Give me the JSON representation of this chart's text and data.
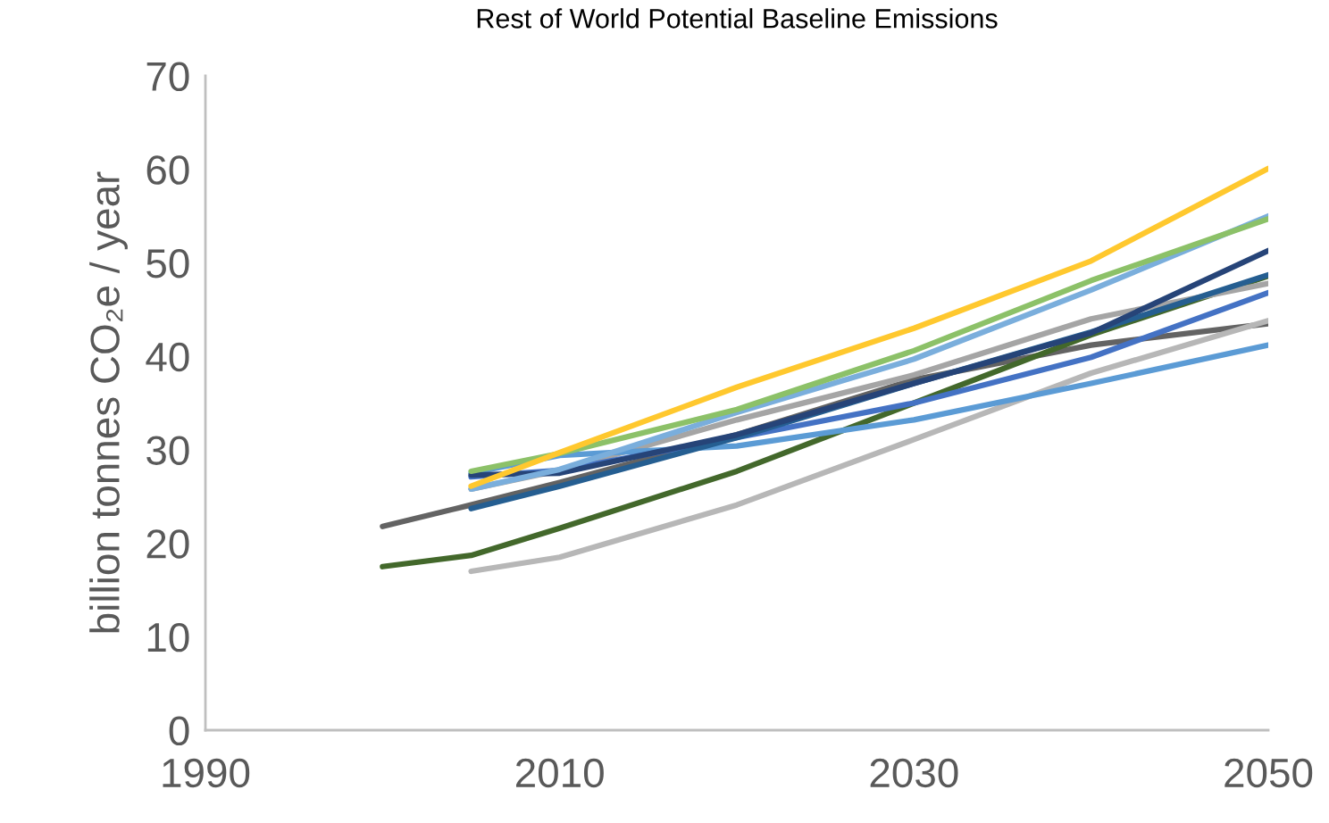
{
  "chart_data": {
    "type": "line",
    "title": "Rest of World Potential Baseline Emissions",
    "ylabel": "billion tonnes CO₂e / year",
    "xlim": [
      1990,
      2050
    ],
    "xticks": [
      1990,
      2010,
      2030,
      2050
    ],
    "ylim": [
      0,
      70
    ],
    "yticks": [
      0,
      10,
      20,
      30,
      40,
      50,
      60,
      70
    ],
    "grid": false,
    "legend": false,
    "marker": "none",
    "line_style": "solid",
    "series": [
      {
        "color": "#636363",
        "x": [
          2000,
          2005,
          2010,
          2020,
          2030,
          2040,
          2050
        ],
        "values": [
          21.8,
          24.1,
          26.5,
          31.6,
          37.5,
          41.2,
          43.5
        ]
      },
      {
        "color": "#43682b",
        "x": [
          2000,
          2005,
          2010,
          2020,
          2030,
          2040,
          2050
        ],
        "values": [
          17.5,
          18.7,
          21.6,
          27.7,
          35,
          42.3,
          48.6
        ]
      },
      {
        "color": "#b7b7b7",
        "x": [
          2005,
          2010,
          2020,
          2030,
          2040,
          2050
        ],
        "values": [
          17,
          18.5,
          24.1,
          31.1,
          38.2,
          43.8
        ]
      },
      {
        "color": "#a5a5a5",
        "x": [
          2005,
          2010,
          2020,
          2030,
          2040,
          2050
        ],
        "values": [
          25.8,
          27.8,
          33.2,
          38,
          44,
          47.8
        ]
      },
      {
        "color": "#5b9bd5",
        "x": [
          2005,
          2010,
          2020,
          2030,
          2040,
          2050
        ],
        "values": [
          27.5,
          29.4,
          30.4,
          33.2,
          37.1,
          41.2
        ]
      },
      {
        "color": "#4472c4",
        "x": [
          2005,
          2010,
          2020,
          2030,
          2040,
          2050
        ],
        "values": [
          27.1,
          27.8,
          31.3,
          35,
          39.9,
          46.8
        ]
      },
      {
        "color": "#255e91",
        "x": [
          2005,
          2010,
          2020,
          2030,
          2040,
          2050
        ],
        "values": [
          23.7,
          26.1,
          31.3,
          37.1,
          42.6,
          48.7
        ]
      },
      {
        "color": "#264478",
        "x": [
          2005,
          2010,
          2020,
          2030,
          2040,
          2050
        ],
        "values": [
          27.3,
          27.5,
          31.6,
          37.1,
          42.5,
          51.3
        ]
      },
      {
        "color": "#7aaedc",
        "x": [
          2005,
          2010,
          2020,
          2030,
          2040,
          2050
        ],
        "values": [
          25.8,
          27.9,
          34,
          39.7,
          47.1,
          55
        ]
      },
      {
        "color": "#8cc168",
        "x": [
          2005,
          2010,
          2020,
          2030,
          2040,
          2050
        ],
        "values": [
          27.7,
          29.6,
          34.3,
          40.6,
          48.1,
          54.7
        ]
      },
      {
        "color": "#ffc82e",
        "x": [
          2005,
          2010,
          2020,
          2030,
          2040,
          2050
        ],
        "values": [
          26.1,
          29.7,
          36.7,
          43,
          50.2,
          60.1
        ]
      }
    ]
  }
}
